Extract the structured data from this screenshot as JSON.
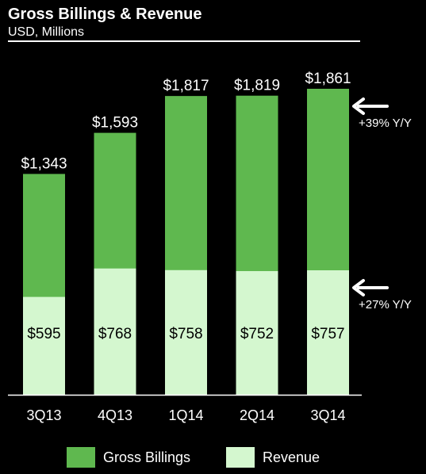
{
  "header": {
    "title": "Gross Billings & Revenue",
    "subtitle": "USD, Millions"
  },
  "colors": {
    "background": "#000000",
    "billings": "#5fb84f",
    "revenue": "#d4f7cf",
    "text": "#ffffff",
    "revenue_label": "#000000"
  },
  "chart_data": {
    "type": "bar",
    "stacking": "overlay",
    "categories": [
      "3Q13",
      "4Q13",
      "1Q14",
      "2Q14",
      "3Q14"
    ],
    "series": [
      {
        "name": "Gross Billings",
        "values": [
          1343,
          1593,
          1817,
          1819,
          1861
        ],
        "labels": [
          "$1,343",
          "$1,593",
          "$1,817",
          "$1,819",
          "$1,861"
        ]
      },
      {
        "name": "Revenue",
        "values": [
          595,
          768,
          758,
          752,
          757
        ],
        "labels": [
          "$595",
          "$768",
          "$758",
          "$752",
          "$757"
        ]
      }
    ],
    "ylim": [
      0,
      1861
    ],
    "grid": false,
    "legend_position": "bottom",
    "annotations": [
      {
        "series": "Gross Billings",
        "text": "+39% Y/Y"
      },
      {
        "series": "Revenue",
        "text": "+27% Y/Y"
      }
    ]
  },
  "legend": {
    "billings_label": "Gross Billings",
    "revenue_label": "Revenue"
  }
}
